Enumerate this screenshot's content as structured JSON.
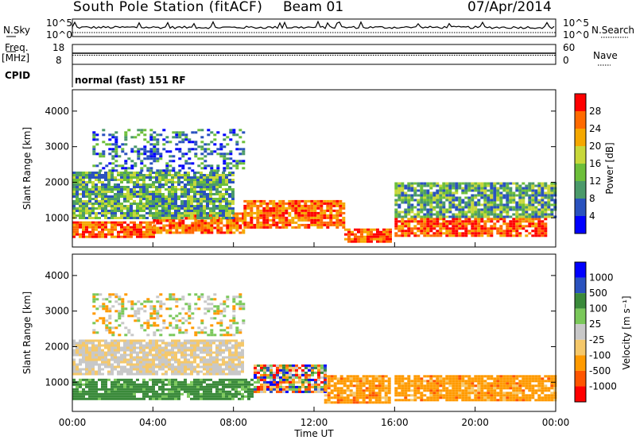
{
  "header": {
    "station_title": "South Pole Station (fitACF)",
    "beam": "Beam 01",
    "date": "07/Apr/2014"
  },
  "summary_panels": {
    "nsky_label": "N.Sky",
    "nsky_tick_top": "10^5",
    "nsky_tick_bottom": "10^0",
    "nsearch_label": "N.Search",
    "nsearch_tick_top": "10^5",
    "nsearch_tick_bottom": "10^0",
    "freq_label_1": "Freq.",
    "freq_label_2": "[MHz]",
    "freq_ticks": [
      "18",
      "8"
    ],
    "nave_label": "Nave",
    "nave_ticks": [
      "60",
      "0"
    ],
    "cpid_label": "CPID",
    "cpid_text": "normal (fast) 151 RF"
  },
  "colors": {
    "power_scale": [
      "#0000ff",
      "#2a52be",
      "#4b9a6a",
      "#6dbf3a",
      "#c8d83a",
      "#f5a800",
      "#ff6a00",
      "#ff0000"
    ],
    "velocity_scale": [
      "#ff0000",
      "#ff5500",
      "#ff9a00",
      "#f5c86a",
      "#c8c8c8",
      "#7ac85a",
      "#3a8a3a",
      "#2a52be",
      "#0000ff"
    ],
    "ground_scatter": "#a0a0a0"
  },
  "chart_data": [
    {
      "type": "heatmap",
      "name": "power",
      "x_ticks": [
        "00:00",
        "04:00",
        "08:00",
        "12:00",
        "16:00",
        "20:00",
        "00:00"
      ],
      "x_range": [
        0,
        24
      ],
      "ylabel": "Slant Range [km]",
      "y_ticks": [
        1000,
        2000,
        3000,
        4000
      ],
      "ylim": [
        180,
        4600
      ],
      "colorbar_label": "Power [dB]",
      "colorbar_ticks": [
        4,
        8,
        12,
        16,
        20,
        24,
        28
      ],
      "colorbar_range": [
        0,
        32
      ],
      "bands": [
        {
          "t0": 0.0,
          "t1": 4.0,
          "r0": 450,
          "r1": 900,
          "level": "high"
        },
        {
          "t0": 4.0,
          "t1": 8.5,
          "r0": 600,
          "r1": 1150,
          "level": "high"
        },
        {
          "t0": 8.5,
          "t1": 13.5,
          "r0": 750,
          "r1": 1500,
          "level": "high"
        },
        {
          "t0": 13.5,
          "t1": 15.8,
          "r0": 350,
          "r1": 700,
          "level": "high"
        },
        {
          "t0": 16.0,
          "t1": 23.5,
          "r0": 500,
          "r1": 1000,
          "level": "high"
        },
        {
          "t0": 0.0,
          "t1": 8.0,
          "r0": 1000,
          "r1": 2300,
          "level": "mid"
        },
        {
          "t0": 16.0,
          "t1": 24.0,
          "r0": 1000,
          "r1": 2000,
          "level": "mid"
        },
        {
          "t0": 1.0,
          "t1": 8.5,
          "r0": 2300,
          "r1": 3500,
          "level": "low"
        }
      ]
    },
    {
      "type": "heatmap",
      "name": "velocity",
      "x_ticks": [
        "00:00",
        "04:00",
        "08:00",
        "12:00",
        "16:00",
        "20:00",
        "00:00"
      ],
      "x_range": [
        0,
        24
      ],
      "xlabel": "Time UT",
      "ylabel": "Slant Range [km]",
      "y_ticks": [
        1000,
        2000,
        3000,
        4000
      ],
      "ylim": [
        180,
        4600
      ],
      "colorbar_label": "Velocity [m s⁻¹]",
      "colorbar_ticks": [
        "1000",
        "500",
        "100",
        "25",
        "-25",
        "-100",
        "-500",
        "-1000"
      ],
      "bands": [
        {
          "t0": 0.0,
          "t1": 9.0,
          "r0": 500,
          "r1": 1100,
          "level": "green"
        },
        {
          "t0": 9.0,
          "t1": 12.5,
          "r0": 700,
          "r1": 1500,
          "level": "mixed"
        },
        {
          "t0": 12.5,
          "t1": 15.8,
          "r0": 400,
          "r1": 1200,
          "level": "orange"
        },
        {
          "t0": 16.0,
          "t1": 24.0,
          "r0": 500,
          "r1": 1200,
          "level": "orange"
        },
        {
          "t0": 0.0,
          "t1": 8.5,
          "r0": 1200,
          "r1": 2200,
          "level": "grey"
        },
        {
          "t0": 1.0,
          "t1": 8.5,
          "r0": 2300,
          "r1": 3500,
          "level": "greyorange"
        }
      ]
    }
  ]
}
